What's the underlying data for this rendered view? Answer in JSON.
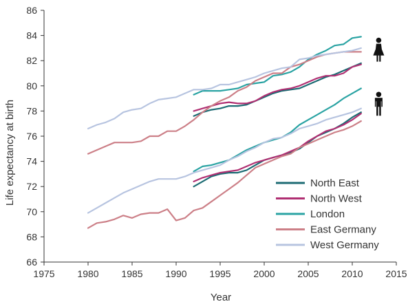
{
  "chart_data": {
    "type": "line",
    "title": "",
    "xlabel": "Year",
    "ylabel": "Life expectancy at birth",
    "xlim": [
      1975,
      2015
    ],
    "ylim": [
      66,
      86
    ],
    "xticks": [
      1975,
      1980,
      1985,
      1990,
      1995,
      2000,
      2005,
      2010,
      2015
    ],
    "yticks": [
      66,
      68,
      70,
      72,
      74,
      76,
      78,
      80,
      82,
      84,
      86
    ],
    "grid": false,
    "legend_position": "bottom-right",
    "legend": [
      "North East",
      "North West",
      "London",
      "East Germany",
      "West Germany"
    ],
    "annotations": [
      {
        "icon": "female-figure-icon",
        "year": 2013,
        "value": 82.8
      },
      {
        "icon": "male-figure-icon",
        "year": 2013,
        "value": 78.5
      }
    ],
    "series": [
      {
        "name": "North East",
        "sex": "female",
        "color": "#1c6b73",
        "x": [
          1992,
          1993,
          1994,
          1995,
          1996,
          1997,
          1998,
          1999,
          2000,
          2001,
          2002,
          2003,
          2004,
          2005,
          2006,
          2007,
          2008,
          2009,
          2010,
          2011
        ],
        "y": [
          77.6,
          77.9,
          78.1,
          78.2,
          78.4,
          78.4,
          78.5,
          78.8,
          79.1,
          79.4,
          79.6,
          79.7,
          79.8,
          80.1,
          80.4,
          80.7,
          80.9,
          81.2,
          81.5,
          81.8
        ]
      },
      {
        "name": "North East",
        "sex": "male",
        "color": "#1c6b73",
        "x": [
          1992,
          1993,
          1994,
          1995,
          1996,
          1997,
          1998,
          1999,
          2000,
          2001,
          2002,
          2003,
          2004,
          2005,
          2006,
          2007,
          2008,
          2009,
          2010,
          2011
        ],
        "y": [
          72.0,
          72.4,
          72.8,
          73.0,
          73.1,
          73.1,
          73.3,
          73.7,
          74.1,
          74.3,
          74.5,
          74.7,
          75.0,
          75.5,
          76.0,
          76.3,
          76.6,
          77.0,
          77.5,
          77.9
        ]
      },
      {
        "name": "North West",
        "sex": "female",
        "color": "#b02f72",
        "x": [
          1992,
          1993,
          1994,
          1995,
          1996,
          1997,
          1998,
          1999,
          2000,
          2001,
          2002,
          2003,
          2004,
          2005,
          2006,
          2007,
          2008,
          2009,
          2010,
          2011
        ],
        "y": [
          78.0,
          78.2,
          78.4,
          78.6,
          78.7,
          78.6,
          78.6,
          78.8,
          79.2,
          79.5,
          79.7,
          79.8,
          80.0,
          80.3,
          80.6,
          80.8,
          80.8,
          81.0,
          81.5,
          81.7
        ]
      },
      {
        "name": "North West",
        "sex": "male",
        "color": "#b02f72",
        "x": [
          1992,
          1993,
          1994,
          1995,
          1996,
          1997,
          1998,
          1999,
          2000,
          2001,
          2002,
          2003,
          2004,
          2005,
          2006,
          2007,
          2008,
          2009,
          2010,
          2011
        ],
        "y": [
          72.4,
          72.7,
          72.9,
          73.1,
          73.2,
          73.3,
          73.6,
          73.9,
          74.1,
          74.3,
          74.5,
          74.8,
          75.1,
          75.6,
          76.0,
          76.4,
          76.6,
          76.9,
          77.3,
          77.8
        ]
      },
      {
        "name": "London",
        "sex": "female",
        "color": "#2aa3a3",
        "x": [
          1992,
          1993,
          1994,
          1995,
          1996,
          1997,
          1998,
          1999,
          2000,
          2001,
          2002,
          2003,
          2004,
          2005,
          2006,
          2007,
          2008,
          2009,
          2010,
          2011
        ],
        "y": [
          79.3,
          79.6,
          79.6,
          79.6,
          79.7,
          79.8,
          80.1,
          80.2,
          80.3,
          80.8,
          80.9,
          81.1,
          81.5,
          82.1,
          82.5,
          82.8,
          83.2,
          83.3,
          83.8,
          83.9
        ]
      },
      {
        "name": "London",
        "sex": "male",
        "color": "#2aa3a3",
        "x": [
          1992,
          1993,
          1994,
          1995,
          1996,
          1997,
          1998,
          1999,
          2000,
          2001,
          2002,
          2003,
          2004,
          2005,
          2006,
          2007,
          2008,
          2009,
          2010,
          2011
        ],
        "y": [
          73.2,
          73.6,
          73.7,
          73.9,
          74.1,
          74.5,
          74.9,
          75.2,
          75.5,
          75.7,
          75.9,
          76.3,
          76.9,
          77.3,
          77.7,
          78.1,
          78.5,
          79.0,
          79.4,
          79.8
        ]
      },
      {
        "name": "East Germany",
        "sex": "female",
        "color": "#cc7f87",
        "x": [
          1980,
          1981,
          1982,
          1983,
          1984,
          1985,
          1986,
          1987,
          1988,
          1989,
          1990,
          1991,
          1992,
          1993,
          1994,
          1995,
          1996,
          1997,
          1998,
          1999,
          2000,
          2001,
          2002,
          2003,
          2004,
          2005,
          2006,
          2007,
          2008,
          2009,
          2010,
          2011
        ],
        "y": [
          74.6,
          74.9,
          75.2,
          75.5,
          75.5,
          75.5,
          75.6,
          76.0,
          76.0,
          76.4,
          76.4,
          76.8,
          77.3,
          77.9,
          78.4,
          78.8,
          79.1,
          79.6,
          79.9,
          80.4,
          80.7,
          81.0,
          81.0,
          81.5,
          81.7,
          82.0,
          82.3,
          82.5,
          82.6,
          82.7,
          82.7,
          82.7
        ]
      },
      {
        "name": "East Germany",
        "sex": "male",
        "color": "#cc7f87",
        "x": [
          1980,
          1981,
          1982,
          1983,
          1984,
          1985,
          1986,
          1987,
          1988,
          1989,
          1990,
          1991,
          1992,
          1993,
          1994,
          1995,
          1996,
          1997,
          1998,
          1999,
          2000,
          2001,
          2002,
          2003,
          2004,
          2005,
          2006,
          2007,
          2008,
          2009,
          2010,
          2011
        ],
        "y": [
          68.7,
          69.1,
          69.2,
          69.4,
          69.7,
          69.5,
          69.8,
          69.9,
          69.9,
          70.2,
          69.3,
          69.5,
          70.1,
          70.3,
          70.8,
          71.3,
          71.8,
          72.3,
          72.9,
          73.5,
          73.8,
          74.1,
          74.4,
          74.6,
          75.1,
          75.4,
          75.7,
          76.0,
          76.3,
          76.5,
          76.8,
          77.2
        ]
      },
      {
        "name": "West Germany",
        "sex": "female",
        "color": "#b7c4e0",
        "x": [
          1980,
          1981,
          1982,
          1983,
          1984,
          1985,
          1986,
          1987,
          1988,
          1989,
          1990,
          1991,
          1992,
          1993,
          1994,
          1995,
          1996,
          1997,
          1998,
          1999,
          2000,
          2001,
          2002,
          2003,
          2004,
          2005,
          2006,
          2007,
          2008,
          2009,
          2010,
          2011
        ],
        "y": [
          76.6,
          76.9,
          77.1,
          77.4,
          77.9,
          78.1,
          78.2,
          78.6,
          78.9,
          79.0,
          79.1,
          79.4,
          79.7,
          79.7,
          79.8,
          80.1,
          80.1,
          80.3,
          80.5,
          80.7,
          81.0,
          81.2,
          81.4,
          81.5,
          82.1,
          82.2,
          82.4,
          82.5,
          82.6,
          82.7,
          82.8,
          83.0
        ]
      },
      {
        "name": "West Germany",
        "sex": "male",
        "color": "#b7c4e0",
        "x": [
          1980,
          1981,
          1982,
          1983,
          1984,
          1985,
          1986,
          1987,
          1988,
          1989,
          1990,
          1991,
          1992,
          1993,
          1994,
          1995,
          1996,
          1997,
          1998,
          1999,
          2000,
          2001,
          2002,
          2003,
          2004,
          2005,
          2006,
          2007,
          2008,
          2009,
          2010,
          2011
        ],
        "y": [
          69.9,
          70.3,
          70.7,
          71.1,
          71.5,
          71.8,
          72.1,
          72.4,
          72.6,
          72.6,
          72.6,
          72.8,
          73.1,
          73.3,
          73.5,
          73.7,
          74.1,
          74.4,
          74.8,
          75.1,
          75.5,
          75.8,
          75.9,
          76.2,
          76.6,
          76.8,
          77.0,
          77.3,
          77.5,
          77.7,
          77.9,
          78.2
        ]
      }
    ]
  }
}
